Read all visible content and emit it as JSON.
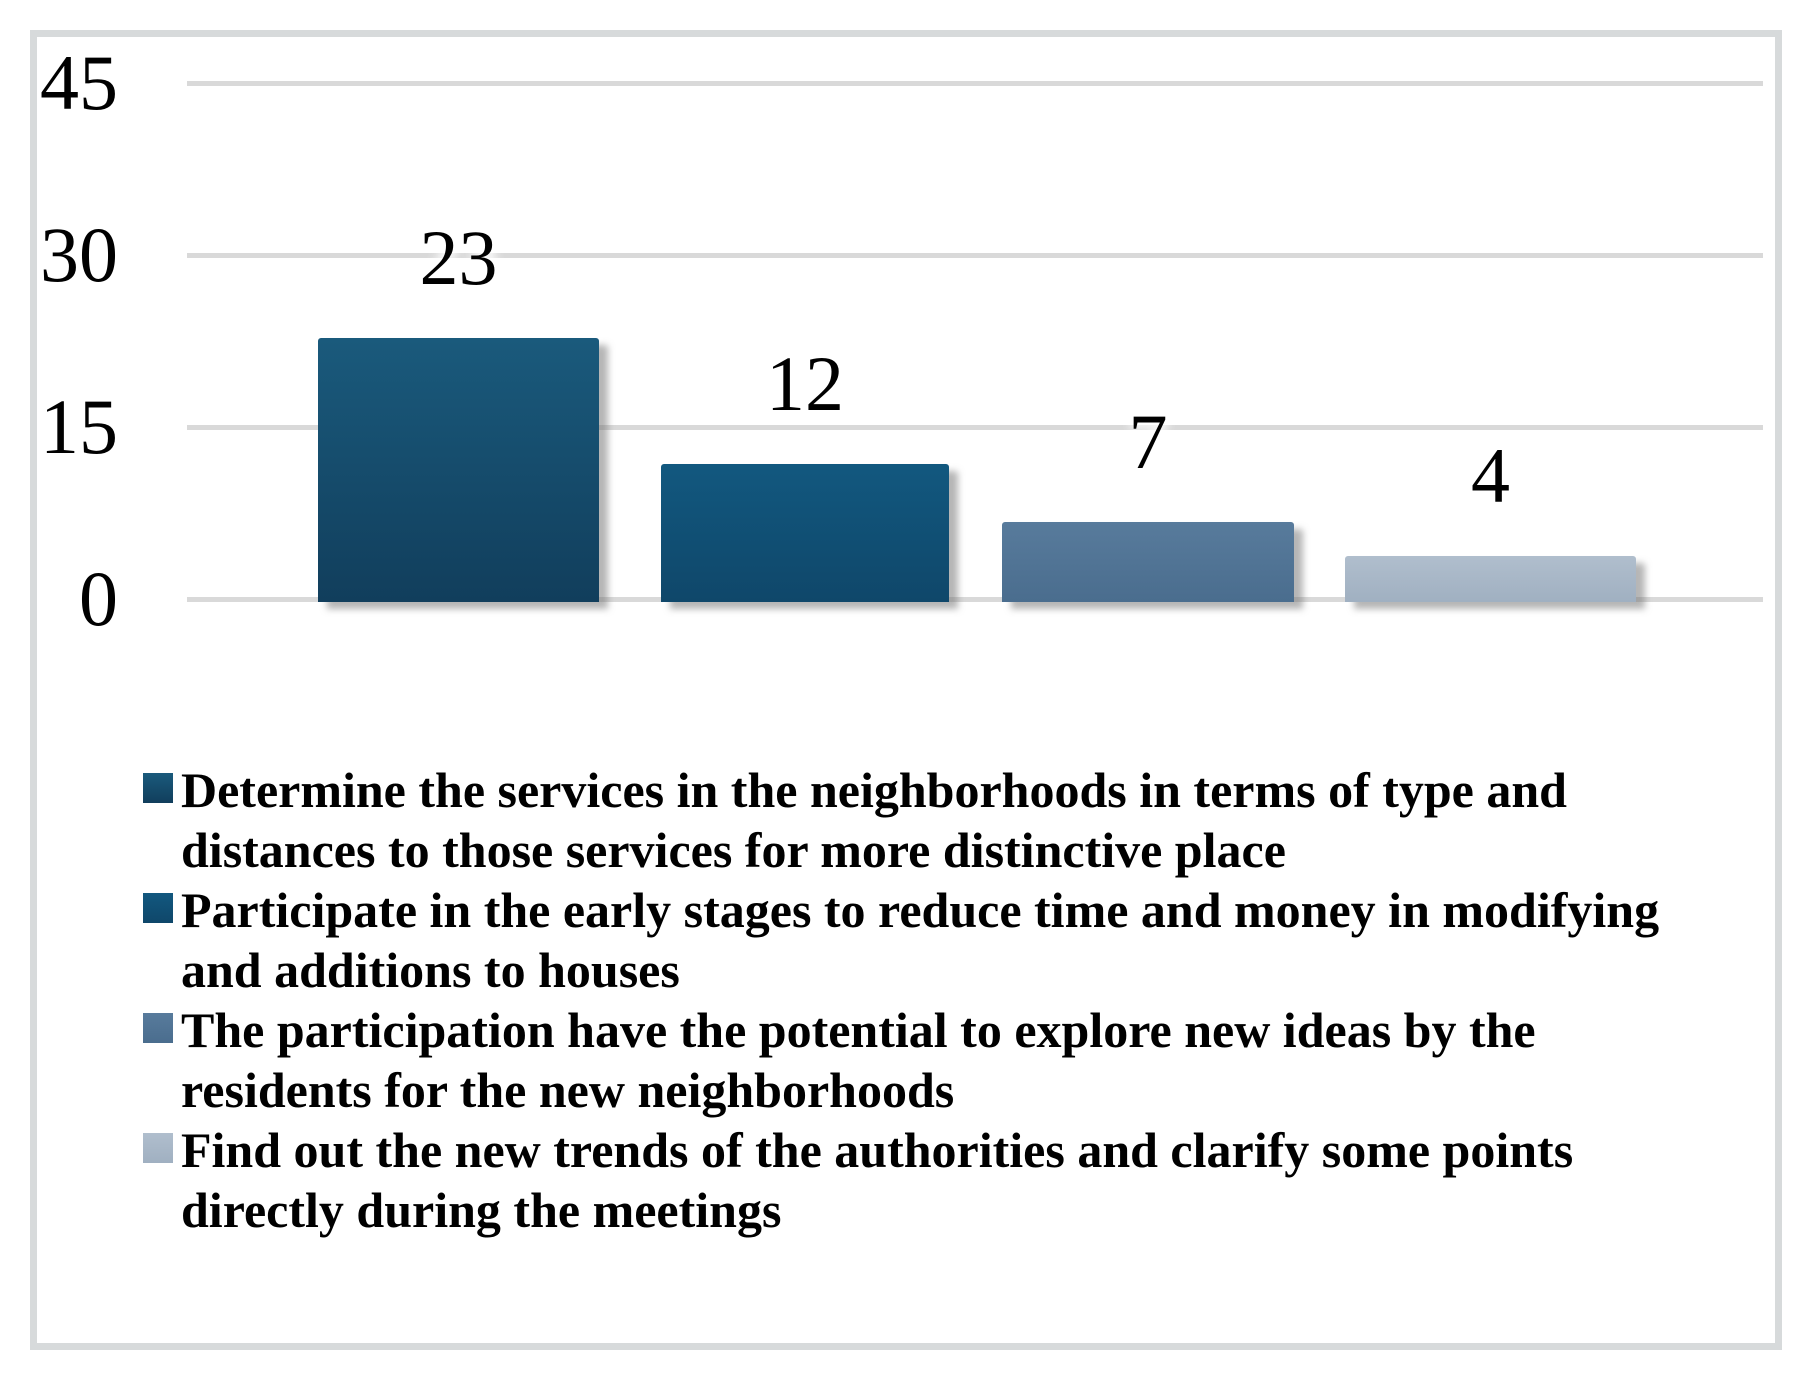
{
  "figure": {
    "background": "#ffffff",
    "frame_color": "#d7dadb",
    "gridline_color": "#d9d9d9",
    "text_color": "#000000"
  },
  "y_axis": {
    "tick_labels": [
      "45",
      "30",
      "15",
      "0"
    ]
  },
  "value_labels": [
    "23",
    "12",
    "7",
    "4"
  ],
  "legend": {
    "items": [
      {
        "line1": "Determine the services in the neighborhoods in terms of type and",
        "line2": "distances to those services for more distinctive place"
      },
      {
        "line1": "Participate in the early stages to reduce time and money in modifying",
        "line2": "and additions to houses"
      },
      {
        "line1": "The participation have the potential to explore new ideas by the",
        "line2": "residents for the new neighborhoods"
      },
      {
        "line1": "Find out the new trends of the authorities and clarify some points",
        "line2": "directly during the meetings"
      }
    ]
  },
  "chart_data": {
    "type": "bar",
    "categories": [
      "Determine the services in the neighborhoods in terms of type and distances to those services for more distinctive place",
      "Participate in the early stages to reduce time and money in modifying and additions to houses",
      "The participation have the potential to explore new ideas by the residents for the new neighborhoods",
      "Find out the new trends of the authorities and clarify some points directly during the meetings"
    ],
    "values": [
      23,
      12,
      7,
      4
    ],
    "bar_colors": [
      {
        "top": "#1a5a7c",
        "bottom": "#113e5c"
      },
      {
        "top": "#12587f",
        "bottom": "#0f476a"
      },
      {
        "top": "#587b9c",
        "bottom": "#4a6d8e"
      },
      {
        "top": "#b0becd",
        "bottom": "#a0b0c1"
      }
    ],
    "title": "",
    "xlabel": "",
    "ylabel": "",
    "ylim": [
      0,
      45
    ],
    "yticks": [
      0,
      15,
      30,
      45
    ],
    "grid": "horizontal",
    "legend_position": "bottom",
    "value_label_position": "above bars"
  }
}
